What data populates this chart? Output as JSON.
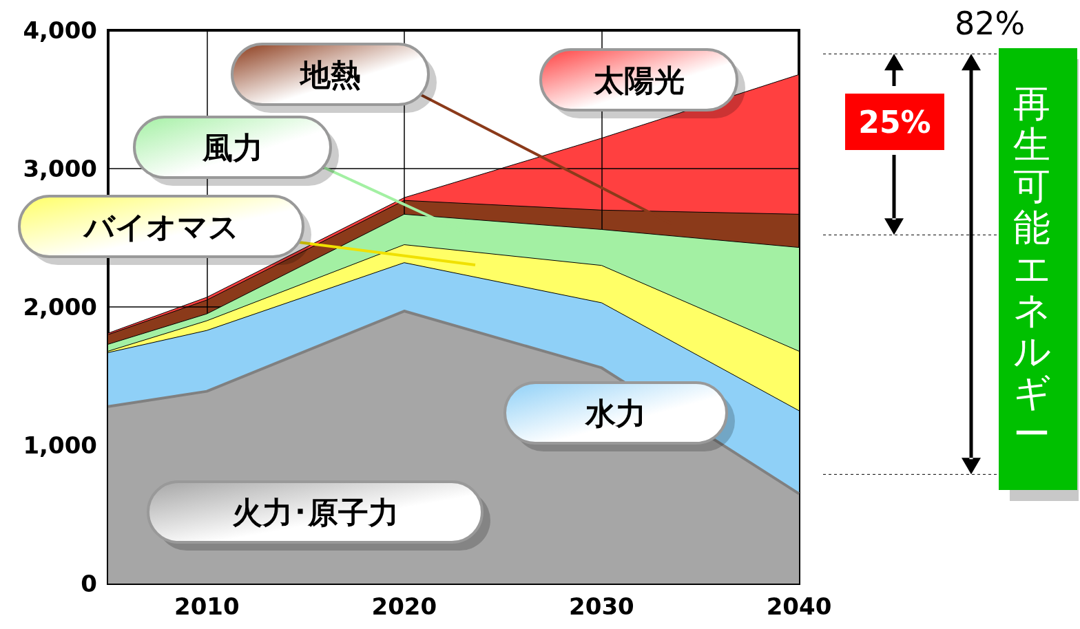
{
  "chart_data": {
    "type": "area",
    "stacked": true,
    "x": [
      2005,
      2010,
      2020,
      2030,
      2040
    ],
    "xlim": [
      2005,
      2040
    ],
    "xticks": [
      2010,
      2020,
      2030,
      2040
    ],
    "ylim": [
      0,
      4000
    ],
    "yticks": [
      0,
      {
        "value": 1000,
        "label": "1,000"
      },
      {
        "value": 2000,
        "label": "2,000"
      },
      {
        "value": 3000,
        "label": "3,000"
      },
      {
        "value": 4000,
        "label": "4,000"
      }
    ],
    "grid": true,
    "legend": false,
    "marker": "none",
    "series": [
      {
        "name": "火力･原子力",
        "color": "#a6a6a6",
        "values": [
          1280,
          1390,
          1970,
          1560,
          650
        ]
      },
      {
        "name": "水力",
        "color": "#8fd0f7",
        "values": [
          390,
          440,
          350,
          470,
          600
        ]
      },
      {
        "name": "バイオマス",
        "color": "#ffff66",
        "values": [
          10,
          70,
          130,
          270,
          430
        ]
      },
      {
        "name": "風力",
        "color": "#a3f0a3",
        "values": [
          50,
          50,
          220,
          260,
          750
        ]
      },
      {
        "name": "地熱",
        "color": "#8b3a1a",
        "values": [
          70,
          100,
          100,
          140,
          240
        ]
      },
      {
        "name": "太陽光",
        "color": "#ff4040",
        "values": [
          10,
          20,
          20,
          520,
          1010
        ]
      }
    ],
    "annotations": [
      "82%",
      "25%",
      "再生可能エネルギー"
    ]
  }
}
